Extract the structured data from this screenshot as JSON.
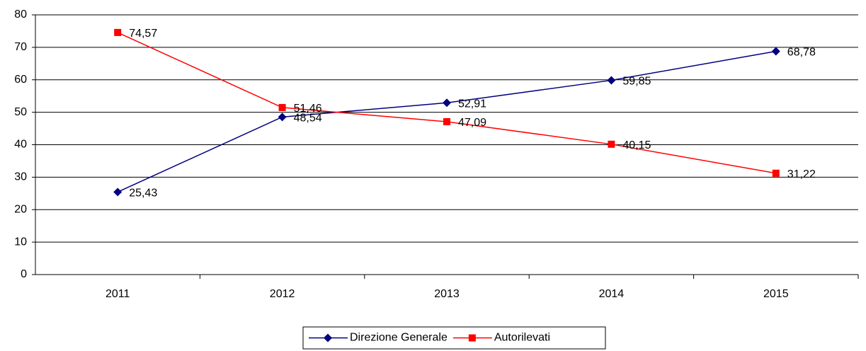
{
  "chart_data": {
    "type": "line",
    "categories": [
      "2011",
      "2012",
      "2013",
      "2014",
      "2015"
    ],
    "series": [
      {
        "name": "Direzione Generale",
        "color": "#000080",
        "marker": "diamond",
        "values": [
          25.43,
          48.54,
          52.91,
          59.85,
          68.78
        ],
        "value_labels": [
          "25,43",
          "48,54",
          "52,91",
          "59,85",
          "68,78"
        ]
      },
      {
        "name": "Autorilevati",
        "color": "#ff0000",
        "marker": "square",
        "values": [
          74.57,
          51.46,
          47.09,
          40.15,
          31.22
        ],
        "value_labels": [
          "74,57",
          "51,46",
          "47,09",
          "40,15",
          "31,22"
        ]
      }
    ],
    "ylim": [
      0,
      80
    ],
    "yticks": [
      0,
      10,
      20,
      30,
      40,
      50,
      60,
      70,
      80
    ],
    "grid": true,
    "legend": "bottom"
  }
}
